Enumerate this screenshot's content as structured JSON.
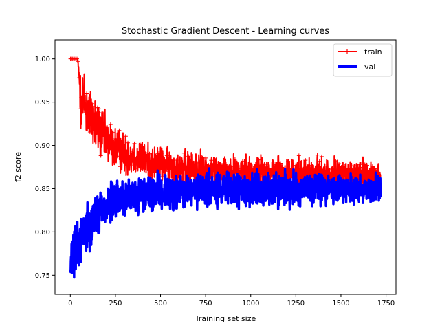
{
  "chart_data": {
    "type": "line",
    "title": "Stochastic Gradient Descent - Learning curves",
    "xlabel": "Training set size",
    "ylabel": "f2 score",
    "xlim": [
      -85,
      1805
    ],
    "ylim": [
      0.728,
      1.022
    ],
    "xticks": [
      0,
      250,
      500,
      750,
      1000,
      1250,
      1500,
      1750
    ],
    "yticks": [
      0.75,
      0.8,
      0.85,
      0.9,
      0.95,
      1.0
    ],
    "xtick_labels": [
      "0",
      "250",
      "500",
      "750",
      "1000",
      "1250",
      "1500",
      "1750"
    ],
    "ytick_labels": [
      "0.75",
      "0.80",
      "0.85",
      "0.90",
      "0.95",
      "1.00"
    ],
    "grid": false,
    "legend_position": "top-right",
    "series": [
      {
        "name": "train",
        "color": "#ff0000",
        "marker": "plus",
        "line_width": 2,
        "x_start": 1,
        "x_end": 1720,
        "n_points": 1720,
        "trend_knots": [
          [
            1,
            1.0
          ],
          [
            40,
            1.0
          ],
          [
            60,
            0.955
          ],
          [
            100,
            0.94
          ],
          [
            150,
            0.92
          ],
          [
            200,
            0.905
          ],
          [
            300,
            0.89
          ],
          [
            450,
            0.88
          ],
          [
            600,
            0.874
          ],
          [
            900,
            0.87
          ],
          [
            1200,
            0.867
          ],
          [
            1720,
            0.865
          ]
        ],
        "noise_knots": [
          [
            1,
            0.0
          ],
          [
            40,
            0.0
          ],
          [
            60,
            0.03
          ],
          [
            200,
            0.02
          ],
          [
            400,
            0.015
          ],
          [
            1720,
            0.013
          ]
        ],
        "min": 0.81,
        "max": 1.0
      },
      {
        "name": "val",
        "color": "#0000ff",
        "marker": "none",
        "line_width": 3.5,
        "x_start": 1,
        "x_end": 1720,
        "n_points": 1720,
        "trend_knots": [
          [
            1,
            0.76
          ],
          [
            50,
            0.79
          ],
          [
            100,
            0.81
          ],
          [
            200,
            0.83
          ],
          [
            300,
            0.84
          ],
          [
            500,
            0.845
          ],
          [
            800,
            0.848
          ],
          [
            1200,
            0.85
          ],
          [
            1720,
            0.85
          ]
        ],
        "noise_knots": [
          [
            1,
            0.02
          ],
          [
            100,
            0.02
          ],
          [
            300,
            0.015
          ],
          [
            1720,
            0.013
          ]
        ],
        "min": 0.742,
        "max": 0.895
      }
    ]
  }
}
